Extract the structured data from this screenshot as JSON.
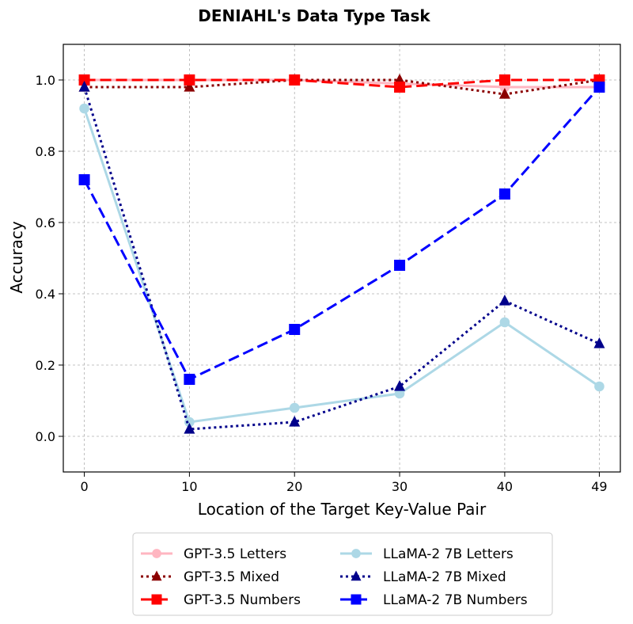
{
  "chart_data": {
    "type": "line",
    "title": "DENIAHL's Data Type Task",
    "xlabel": "Location of the Target Key-Value Pair",
    "ylabel": "Accuracy",
    "x": [
      0,
      10,
      20,
      30,
      40,
      49
    ],
    "x_ticks": [
      "0",
      "10",
      "20",
      "30",
      "40",
      "49"
    ],
    "y_ticks": [
      "0.0",
      "0.2",
      "0.4",
      "0.6",
      "0.8",
      "1.0"
    ],
    "xlim": [
      -2,
      51
    ],
    "ylim": [
      -0.1,
      1.1
    ],
    "grid": true,
    "legend_position": "bottom",
    "series": [
      {
        "name": "GPT-3.5 Letters",
        "values": [
          1.0,
          1.0,
          1.0,
          0.99,
          0.98,
          0.98
        ],
        "color": "#ffb6c1",
        "linestyle": "solid",
        "marker": "circle"
      },
      {
        "name": "GPT-3.5 Mixed",
        "values": [
          0.98,
          0.98,
          1.0,
          1.0,
          0.96,
          1.0
        ],
        "color": "#8b0000",
        "linestyle": "dotted",
        "marker": "triangle"
      },
      {
        "name": "GPT-3.5 Numbers",
        "values": [
          1.0,
          1.0,
          1.0,
          0.98,
          1.0,
          1.0
        ],
        "color": "#ff0000",
        "linestyle": "dashed",
        "marker": "square"
      },
      {
        "name": "LLaMA-2 7B Letters",
        "values": [
          0.92,
          0.04,
          0.08,
          0.12,
          0.32,
          0.14
        ],
        "color": "#add8e6",
        "linestyle": "solid",
        "marker": "circle"
      },
      {
        "name": "LLaMA-2 7B Mixed",
        "values": [
          0.98,
          0.02,
          0.04,
          0.14,
          0.38,
          0.26
        ],
        "color": "#00008b",
        "linestyle": "dotted",
        "marker": "triangle"
      },
      {
        "name": "LLaMA-2 7B Numbers",
        "values": [
          0.72,
          0.16,
          0.3,
          0.48,
          0.68,
          0.98
        ],
        "color": "#0000ff",
        "linestyle": "dashed",
        "marker": "square"
      }
    ]
  }
}
